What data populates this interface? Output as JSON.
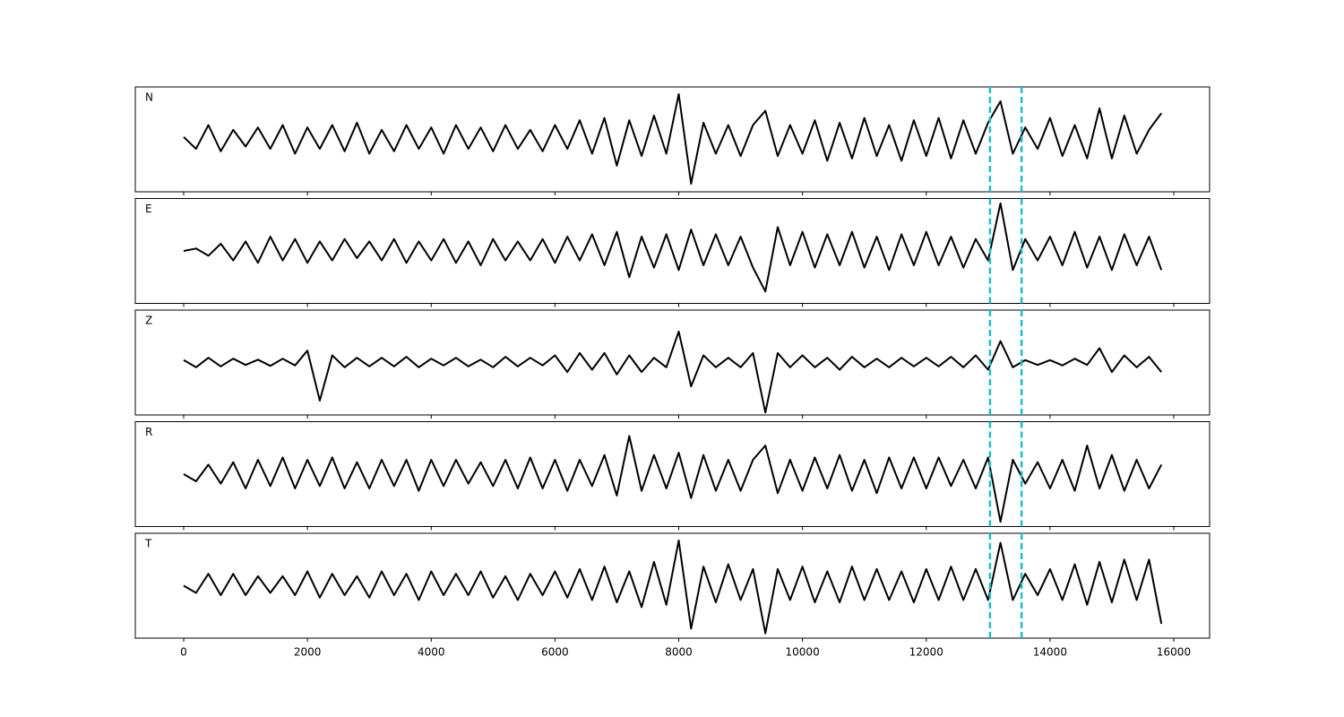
{
  "chart_data": {
    "type": "line",
    "x": [
      0,
      200,
      400,
      600,
      800,
      1000,
      1200,
      1400,
      1600,
      1800,
      2000,
      2200,
      2400,
      2600,
      2800,
      3000,
      3200,
      3400,
      3600,
      3800,
      4000,
      4200,
      4400,
      4600,
      4800,
      5000,
      5200,
      5400,
      5600,
      5800,
      6000,
      6200,
      6400,
      6600,
      6800,
      7000,
      7200,
      7400,
      7600,
      7800,
      8000,
      8200,
      8400,
      8600,
      8800,
      9000,
      9200,
      9400,
      9600,
      9800,
      10000,
      10200,
      10400,
      10600,
      10800,
      11000,
      11200,
      11400,
      11600,
      11800,
      12000,
      12200,
      12400,
      12600,
      12800,
      13000,
      13200,
      13400,
      13600,
      13800,
      14000,
      14200,
      14400,
      14600,
      14800,
      15000,
      15200,
      15400,
      15600,
      15800
    ],
    "series": [
      {
        "name": "N",
        "color": "#000000",
        "values": [
          0.05,
          -0.2,
          0.3,
          -0.25,
          0.2,
          -0.15,
          0.25,
          -0.2,
          0.3,
          -0.3,
          0.25,
          -0.2,
          0.3,
          -0.25,
          0.35,
          -0.3,
          0.2,
          -0.25,
          0.3,
          -0.2,
          0.25,
          -0.3,
          0.3,
          -0.2,
          0.25,
          -0.25,
          0.3,
          -0.2,
          0.2,
          -0.25,
          0.3,
          -0.2,
          0.4,
          -0.3,
          0.45,
          -0.55,
          0.4,
          -0.35,
          0.5,
          -0.3,
          0.95,
          -0.93,
          0.35,
          -0.3,
          0.3,
          -0.35,
          0.3,
          0.6,
          -0.35,
          0.3,
          -0.3,
          0.4,
          -0.45,
          0.35,
          -0.4,
          0.45,
          -0.35,
          0.3,
          -0.45,
          0.4,
          -0.35,
          0.45,
          -0.4,
          0.4,
          -0.3,
          0.35,
          0.8,
          -0.3,
          0.25,
          -0.2,
          0.45,
          -0.35,
          0.3,
          -0.4,
          0.65,
          -0.4,
          0.5,
          -0.3,
          0.2,
          0.55
        ]
      },
      {
        "name": "E",
        "color": "#000000",
        "values": [
          0.0,
          0.05,
          -0.1,
          0.15,
          -0.2,
          0.2,
          -0.25,
          0.3,
          -0.2,
          0.25,
          -0.25,
          0.2,
          -0.2,
          0.25,
          -0.15,
          0.2,
          -0.2,
          0.25,
          -0.25,
          0.2,
          -0.2,
          0.25,
          -0.25,
          0.2,
          -0.3,
          0.25,
          -0.2,
          0.2,
          -0.2,
          0.25,
          -0.25,
          0.3,
          -0.2,
          0.35,
          -0.3,
          0.4,
          -0.55,
          0.3,
          -0.35,
          0.35,
          -0.4,
          0.45,
          -0.3,
          0.35,
          -0.3,
          0.3,
          -0.35,
          -0.85,
          0.5,
          -0.3,
          0.4,
          -0.35,
          0.35,
          -0.3,
          0.4,
          -0.35,
          0.3,
          -0.4,
          0.35,
          -0.3,
          0.4,
          -0.3,
          0.3,
          -0.35,
          0.25,
          -0.2,
          1.0,
          -0.4,
          0.25,
          -0.2,
          0.3,
          -0.3,
          0.4,
          -0.35,
          0.3,
          -0.4,
          0.35,
          -0.3,
          0.3,
          -0.4
        ]
      },
      {
        "name": "Z",
        "color": "#000000",
        "values": [
          0.05,
          -0.1,
          0.1,
          -0.08,
          0.08,
          -0.05,
          0.06,
          -0.07,
          0.08,
          -0.06,
          0.25,
          -0.8,
          0.15,
          -0.1,
          0.1,
          -0.08,
          0.1,
          -0.08,
          0.12,
          -0.1,
          0.08,
          -0.06,
          0.1,
          -0.08,
          0.06,
          -0.1,
          0.12,
          -0.08,
          0.1,
          -0.06,
          0.15,
          -0.2,
          0.2,
          -0.15,
          0.2,
          -0.25,
          0.15,
          -0.2,
          0.1,
          -0.1,
          0.65,
          -0.5,
          0.15,
          -0.1,
          0.1,
          -0.1,
          0.2,
          -1.05,
          0.2,
          -0.1,
          0.15,
          -0.1,
          0.1,
          -0.15,
          0.12,
          -0.1,
          0.08,
          -0.1,
          0.1,
          -0.08,
          0.1,
          -0.08,
          0.12,
          -0.1,
          0.15,
          -0.15,
          0.45,
          -0.1,
          0.05,
          -0.05,
          0.05,
          -0.06,
          0.08,
          -0.05,
          0.3,
          -0.2,
          0.15,
          -0.1,
          0.12,
          -0.2
        ]
      },
      {
        "name": "R",
        "color": "#000000",
        "values": [
          0.0,
          -0.15,
          0.2,
          -0.2,
          0.25,
          -0.3,
          0.3,
          -0.25,
          0.35,
          -0.3,
          0.3,
          -0.25,
          0.35,
          -0.3,
          0.25,
          -0.3,
          0.3,
          -0.25,
          0.3,
          -0.35,
          0.3,
          -0.25,
          0.3,
          -0.2,
          0.25,
          -0.25,
          0.3,
          -0.3,
          0.35,
          -0.3,
          0.3,
          -0.35,
          0.3,
          -0.25,
          0.4,
          -0.45,
          0.8,
          -0.35,
          0.4,
          -0.3,
          0.45,
          -0.5,
          0.4,
          -0.35,
          0.3,
          -0.35,
          0.3,
          0.6,
          -0.4,
          0.3,
          -0.35,
          0.35,
          -0.3,
          0.4,
          -0.35,
          0.3,
          -0.4,
          0.35,
          -0.3,
          0.35,
          -0.3,
          0.35,
          -0.25,
          0.3,
          -0.3,
          0.35,
          -1.0,
          0.3,
          -0.2,
          0.25,
          -0.3,
          0.3,
          -0.35,
          0.6,
          -0.3,
          0.4,
          -0.35,
          0.3,
          -0.3,
          0.2
        ]
      },
      {
        "name": "T",
        "color": "#000000",
        "values": [
          0.0,
          -0.15,
          0.25,
          -0.2,
          0.25,
          -0.2,
          0.2,
          -0.15,
          0.2,
          -0.2,
          0.3,
          -0.25,
          0.25,
          -0.2,
          0.2,
          -0.25,
          0.3,
          -0.2,
          0.25,
          -0.3,
          0.3,
          -0.2,
          0.25,
          -0.2,
          0.3,
          -0.25,
          0.2,
          -0.3,
          0.25,
          -0.2,
          0.3,
          -0.25,
          0.35,
          -0.3,
          0.4,
          -0.35,
          0.3,
          -0.45,
          0.5,
          -0.4,
          0.95,
          -0.9,
          0.4,
          -0.35,
          0.45,
          -0.3,
          0.35,
          -1.0,
          0.35,
          -0.3,
          0.4,
          -0.35,
          0.3,
          -0.35,
          0.4,
          -0.3,
          0.35,
          -0.3,
          0.3,
          -0.35,
          0.35,
          -0.3,
          0.4,
          -0.3,
          0.35,
          -0.3,
          0.9,
          -0.3,
          0.25,
          -0.2,
          0.35,
          -0.3,
          0.45,
          -0.4,
          0.5,
          -0.35,
          0.55,
          -0.3,
          0.55,
          -0.8
        ]
      }
    ],
    "xlim": [
      -782,
      16579
    ],
    "xticks": [
      0,
      2000,
      4000,
      6000,
      8000,
      10000,
      12000,
      14000,
      16000
    ],
    "ylim": [
      -1.1,
      1.1
    ],
    "vlines": [
      13030,
      13540
    ],
    "vline_color": "#17becf"
  }
}
